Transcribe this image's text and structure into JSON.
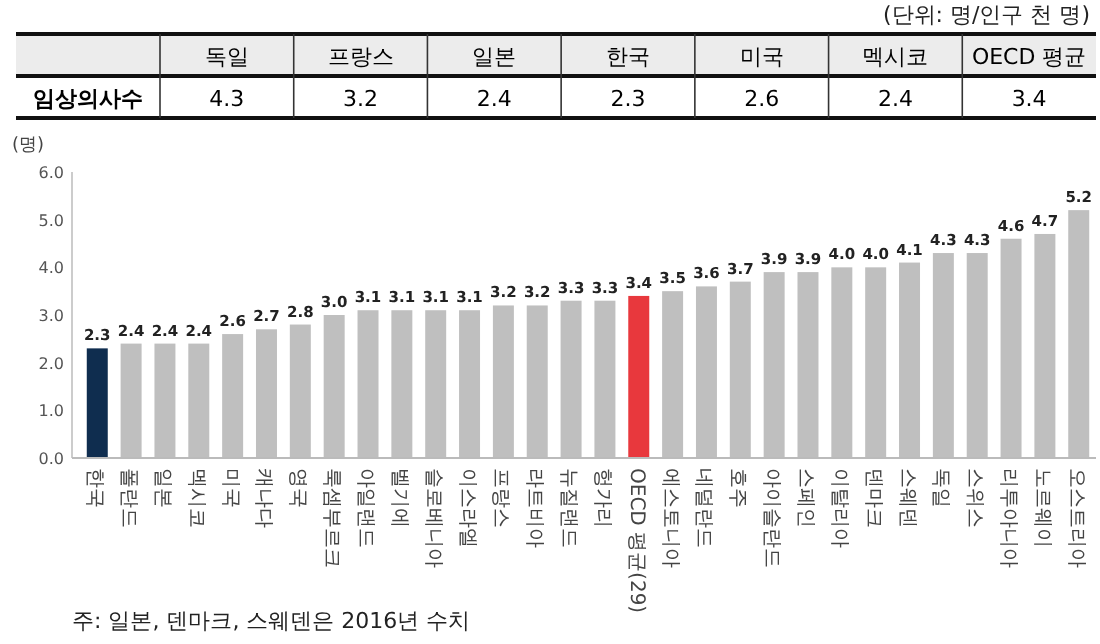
{
  "chart_data": [
    {
      "type": "other",
      "subtitle": "(단위: 명/인구 천 명)",
      "ylabel": "임상의사수",
      "categories": [
        "독일",
        "프랑스",
        "일본",
        "한국",
        "미국",
        "멕시코",
        "OECD 평균"
      ],
      "values": [
        4.3,
        3.2,
        2.4,
        2.3,
        2.6,
        2.4,
        3.4
      ],
      "data_labels": true
    },
    {
      "type": "bar",
      "ylabel": "(명)",
      "categories": [
        "한국",
        "폴란드",
        "일본",
        "멕시코",
        "미국",
        "캐나다",
        "영국",
        "룩셈부르크",
        "아일랜드",
        "벨기에",
        "슬로베니아",
        "이스라엘",
        "프랑스",
        "라트비아",
        "뉴질랜드",
        "헝가리",
        "OECD 평균(29)",
        "에스토니아",
        "네덜란드",
        "호주",
        "아이슬란드",
        "스페인",
        "이탈리아",
        "덴마크",
        "스웨덴",
        "독일",
        "스위스",
        "리투아니아",
        "노르웨이",
        "오스트리아"
      ],
      "values": [
        2.3,
        2.4,
        2.4,
        2.4,
        2.6,
        2.7,
        2.8,
        3.0,
        3.1,
        3.1,
        3.1,
        3.1,
        3.2,
        3.2,
        3.3,
        3.3,
        3.4,
        3.5,
        3.6,
        3.7,
        3.9,
        3.9,
        4.0,
        4.0,
        4.1,
        4.3,
        4.3,
        4.6,
        4.7,
        5.2
      ],
      "colors": [
        "#0f2d4f",
        "#bfbfbf",
        "#bfbfbf",
        "#bfbfbf",
        "#bfbfbf",
        "#bfbfbf",
        "#bfbfbf",
        "#bfbfbf",
        "#bfbfbf",
        "#bfbfbf",
        "#bfbfbf",
        "#bfbfbf",
        "#bfbfbf",
        "#bfbfbf",
        "#bfbfbf",
        "#bfbfbf",
        "#e8383d",
        "#bfbfbf",
        "#bfbfbf",
        "#bfbfbf",
        "#bfbfbf",
        "#bfbfbf",
        "#bfbfbf",
        "#bfbfbf",
        "#bfbfbf",
        "#bfbfbf",
        "#bfbfbf",
        "#bfbfbf",
        "#bfbfbf",
        "#bfbfbf"
      ],
      "ylim": [
        0,
        6
      ],
      "yticks": [
        {
          "value": 0,
          "label": "0.0"
        },
        {
          "value": 1,
          "label": "1.0"
        },
        {
          "value": 2,
          "label": "2.0"
        },
        {
          "value": 3,
          "label": "3.0"
        },
        {
          "value": 4,
          "label": "4.0"
        },
        {
          "value": 5,
          "label": "5.0"
        },
        {
          "value": 6,
          "label": "6.0"
        }
      ],
      "value_labels": [
        "2.3",
        "2.4",
        "2.4",
        "2.4",
        "2.6",
        "2.7",
        "2.8",
        "3.0",
        "3.1",
        "3.1",
        "3.1",
        "3.1",
        "3.2",
        "3.2",
        "3.3",
        "3.3",
        "3.4",
        "3.5",
        "3.6",
        "3.7",
        "3.9",
        "3.9",
        "4.0",
        "4.0",
        "4.1",
        "4.3",
        "4.3",
        "4.6",
        "4.7",
        "5.2"
      ],
      "grid": false,
      "annotations": [
        "주: 일본, 덴마크, 스웨덴은 2016년 수치"
      ]
    }
  ]
}
